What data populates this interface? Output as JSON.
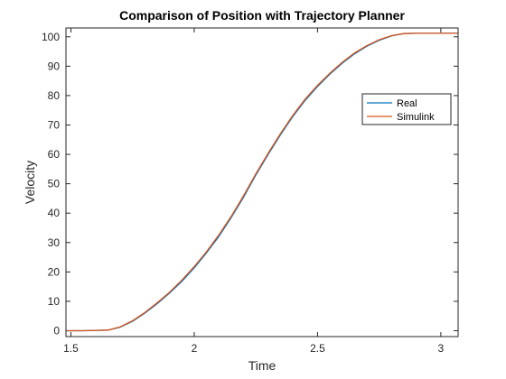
{
  "chart_data": {
    "type": "line",
    "title": "Comparison of Position with Trajectory Planner",
    "xlabel": "Time",
    "ylabel": "Velocity",
    "xlim": [
      1.48,
      3.07
    ],
    "ylim": [
      -2,
      103
    ],
    "xticks": [
      1.5,
      2,
      2.5,
      3
    ],
    "xtick_labels": [
      "1.5",
      "2",
      "2.5",
      "3"
    ],
    "yticks": [
      0,
      10,
      20,
      30,
      40,
      50,
      60,
      70,
      80,
      90,
      100
    ],
    "ytick_labels": [
      "0",
      "10",
      "20",
      "30",
      "40",
      "50",
      "60",
      "70",
      "80",
      "90",
      "100"
    ],
    "grid": false,
    "legend_position": "right",
    "series": [
      {
        "name": "Real",
        "color": "#0072BD",
        "x": [
          1.48,
          1.55,
          1.65,
          1.7,
          1.75,
          1.8,
          1.85,
          1.9,
          1.95,
          2.0,
          2.05,
          2.1,
          2.15,
          2.2,
          2.25,
          2.3,
          2.35,
          2.4,
          2.45,
          2.5,
          2.55,
          2.6,
          2.65,
          2.7,
          2.75,
          2.8,
          2.85,
          2.9,
          3.07
        ],
        "y": [
          0,
          0,
          0.2,
          1.2,
          3.2,
          6.0,
          9.2,
          12.8,
          16.8,
          21.4,
          26.5,
          32.1,
          38.5,
          45.4,
          53.0,
          60.0,
          66.7,
          72.9,
          78.4,
          83.1,
          87.3,
          91.0,
          94.2,
          96.8,
          98.8,
          100.3,
          101.1,
          101.2,
          101.2
        ]
      },
      {
        "name": "Simulink",
        "color": "#D95319",
        "x": [
          1.48,
          1.55,
          1.65,
          1.7,
          1.75,
          1.8,
          1.85,
          1.9,
          1.95,
          2.0,
          2.05,
          2.1,
          2.15,
          2.2,
          2.25,
          2.3,
          2.35,
          2.4,
          2.45,
          2.5,
          2.55,
          2.6,
          2.65,
          2.7,
          2.75,
          2.8,
          2.85,
          2.9,
          3.07
        ],
        "y": [
          0,
          0,
          0.2,
          1.3,
          3.4,
          6.2,
          9.5,
          13.1,
          17.2,
          21.8,
          26.9,
          32.6,
          38.9,
          45.9,
          53.4,
          60.4,
          67.1,
          73.3,
          78.8,
          83.5,
          87.6,
          91.3,
          94.5,
          97.0,
          99.0,
          100.4,
          101.1,
          101.2,
          101.2
        ]
      }
    ]
  }
}
